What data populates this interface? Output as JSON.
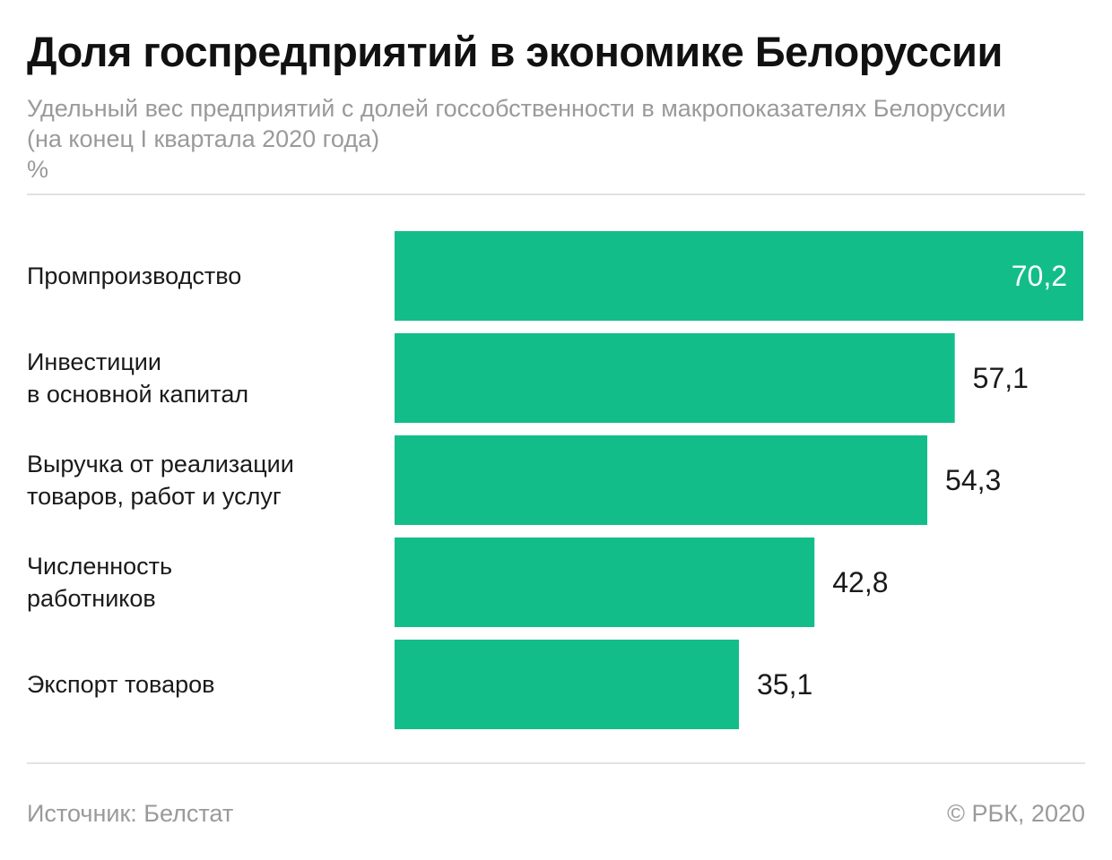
{
  "header": {
    "title": "Доля госпредприятий в экономике Белоруссии",
    "subtitle": "Удельный вес предприятий с долей госсобственности в макропоказателях Белоруссии (на конец I квартала 2020 года)",
    "unit": "%"
  },
  "footer": {
    "source": "Источник: Белстат",
    "copyright": "© РБК, 2020"
  },
  "colors": {
    "bar": "#13bd89",
    "value_inside": "#ffffff",
    "value_outside": "#1a1a1a"
  },
  "chart_data": {
    "type": "bar",
    "orientation": "horizontal",
    "categories": [
      [
        "Промпроизводство"
      ],
      [
        "Инвестиции",
        "в основной капитал"
      ],
      [
        "Выручка от реализации",
        "товаров, работ и услуг"
      ],
      [
        "Численность",
        "работников"
      ],
      [
        "Экспорт товаров"
      ]
    ],
    "values": [
      70.2,
      57.1,
      54.3,
      42.8,
      35.1
    ],
    "value_labels": [
      "70,2",
      "57,1",
      "54,3",
      "42,8",
      "35,1"
    ],
    "xlim": [
      0,
      70.2
    ],
    "grid": false,
    "legend": "none"
  }
}
